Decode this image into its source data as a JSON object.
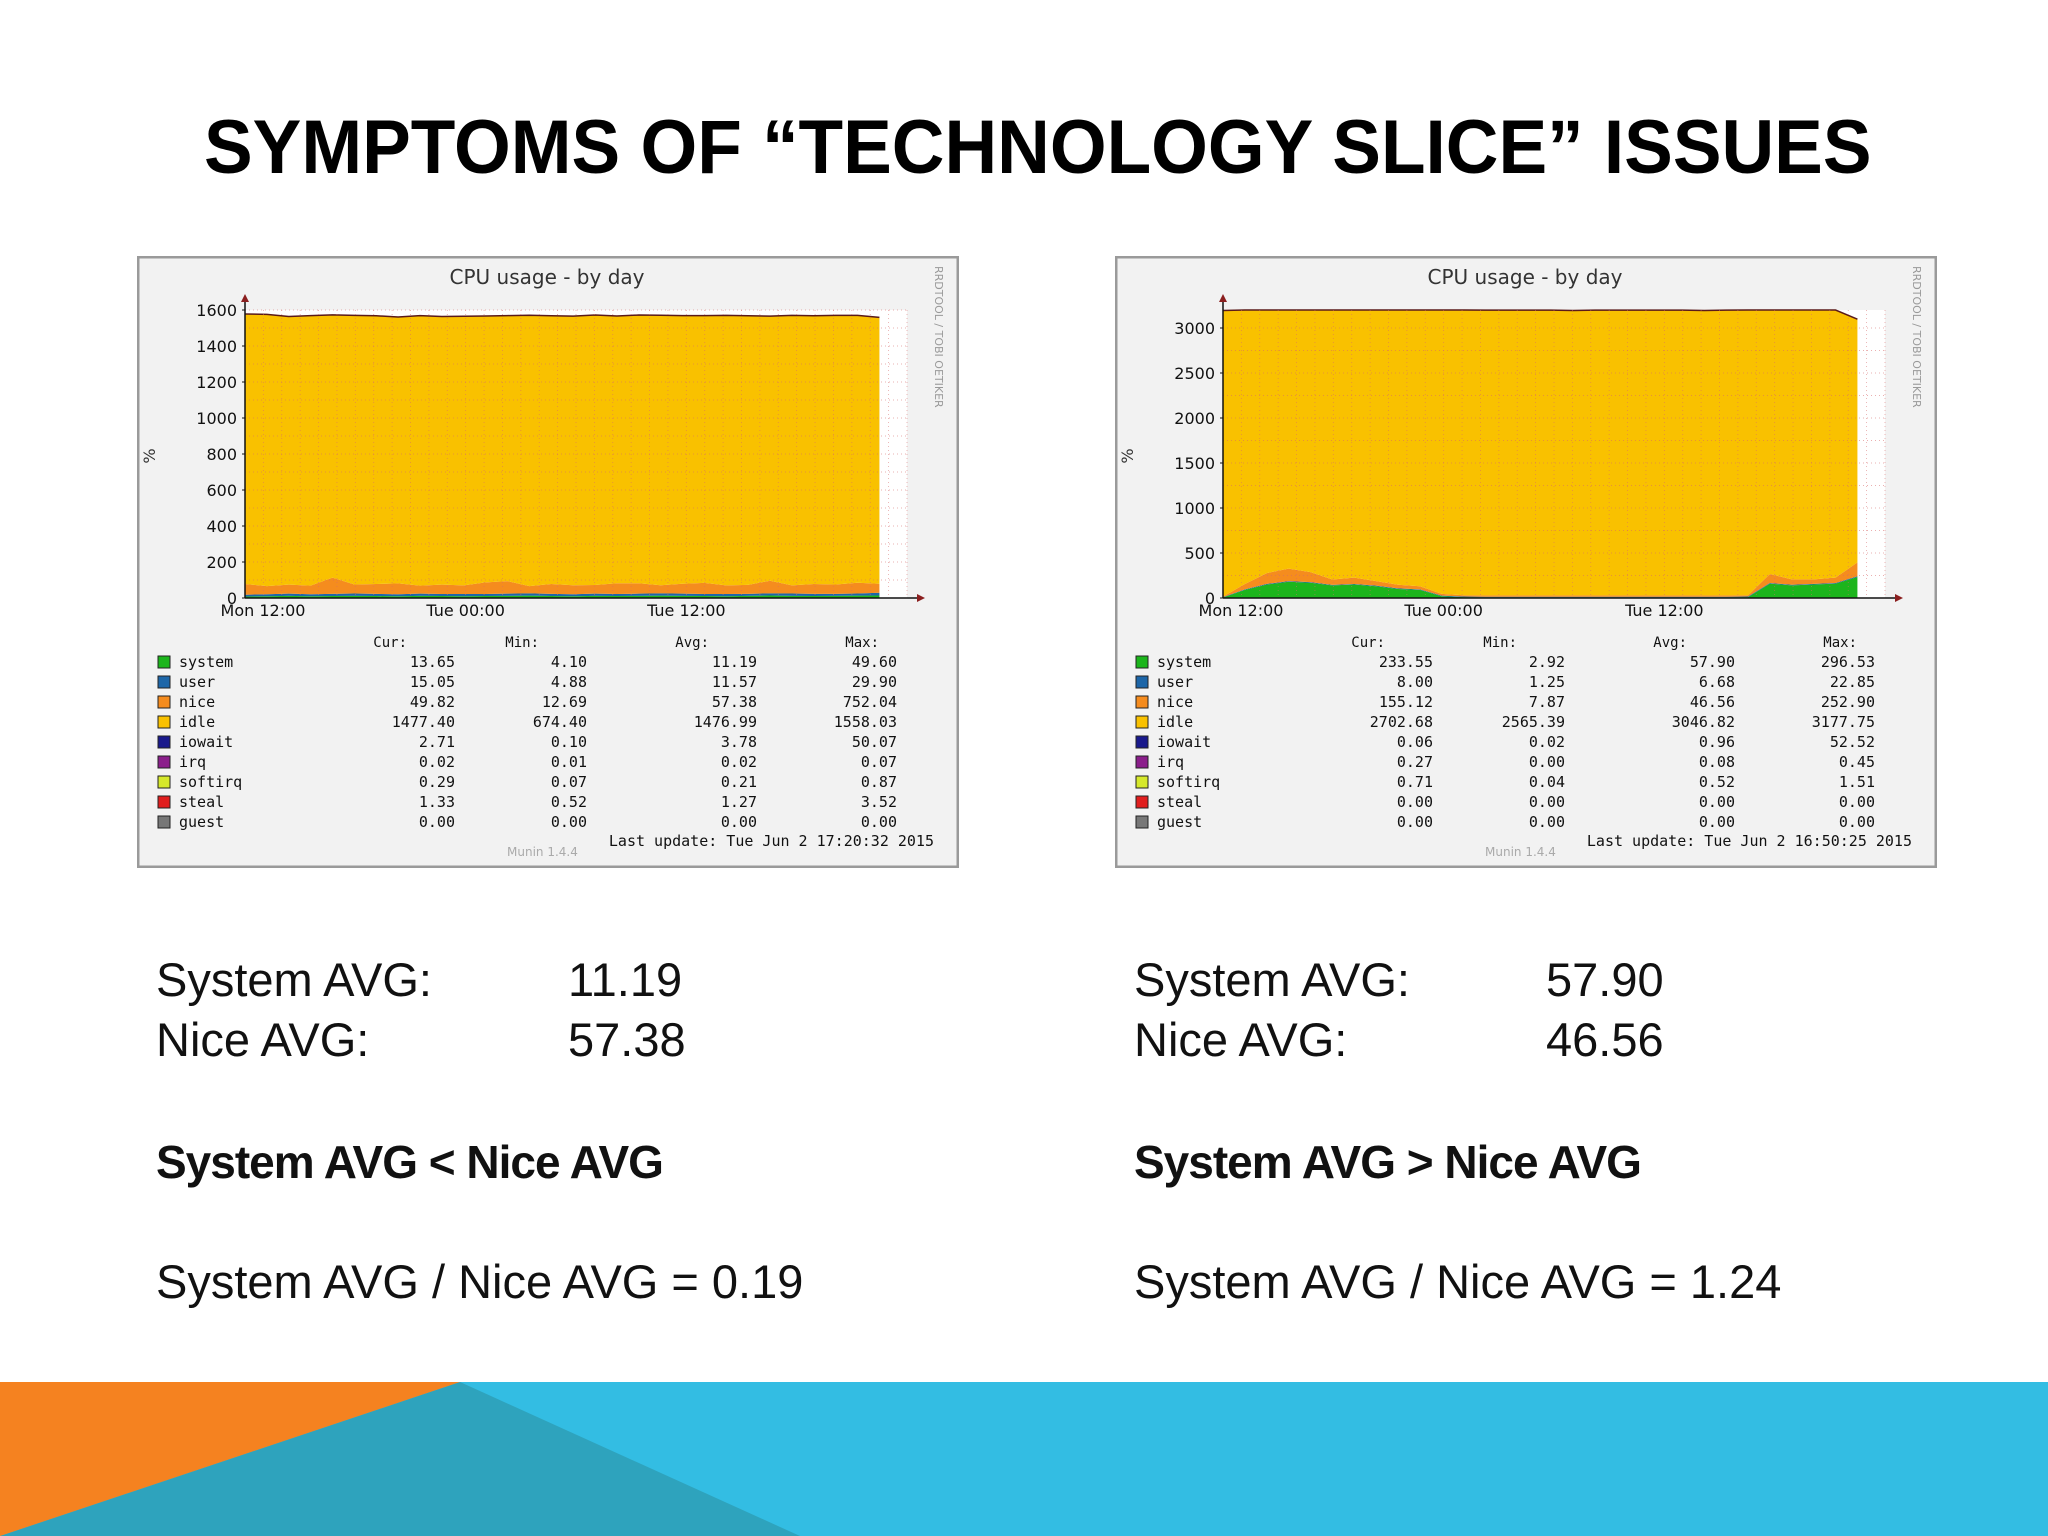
{
  "slide": {
    "title": "SYMPTOMS OF “TECHNOLOGY SLICE” ISSUES"
  },
  "colors": {
    "accent_orange": "#F58220",
    "accent_blue": "#33BDE3",
    "accent_teal": "#2EA3BD",
    "idle": "#F9C100",
    "nice": "#F58C1E",
    "system": "#1CB51C",
    "user": "#1D66A8"
  },
  "chart_data": [
    {
      "type": "area",
      "title": "CPU usage - by day",
      "ylabel": "%",
      "side_label": "RRDTOOL / TOBI OETIKER",
      "ylim": [
        0,
        1600
      ],
      "yticks": [
        "0",
        "200",
        "400",
        "600",
        "800",
        "1000",
        "1200",
        "1400",
        "1600"
      ],
      "ytick_values": [
        0,
        200,
        400,
        600,
        800,
        1000,
        1200,
        1400,
        1600
      ],
      "xlim": [
        0,
        36
      ],
      "xticks": [
        "Mon 12:00",
        "Tue 00:00",
        "Tue 12:00"
      ],
      "xtick_values": [
        0,
        12,
        24
      ],
      "grid": true,
      "series": [
        {
          "name": "system",
          "color": "#1CB51C",
          "values": [
            8,
            10,
            12,
            10,
            11,
            12,
            11,
            10,
            12,
            11,
            10,
            11,
            12,
            13,
            11,
            10,
            12,
            11,
            12,
            13,
            12,
            11,
            10,
            12,
            14,
            12,
            11,
            12,
            13,
            14
          ]
        },
        {
          "name": "user",
          "color": "#1D66A8",
          "values": [
            10,
            11,
            12,
            11,
            12,
            13,
            12,
            11,
            12,
            11,
            12,
            11,
            12,
            13,
            12,
            11,
            12,
            11,
            12,
            13,
            12,
            11,
            12,
            11,
            12,
            13,
            12,
            11,
            12,
            15
          ]
        },
        {
          "name": "nice",
          "color": "#F58C1E",
          "values": [
            60,
            45,
            50,
            48,
            90,
            50,
            55,
            60,
            45,
            52,
            48,
            65,
            70,
            40,
            55,
            50,
            48,
            60,
            58,
            45,
            55,
            62,
            48,
            50,
            70,
            45,
            55,
            52,
            60,
            50
          ]
        },
        {
          "name": "idle",
          "color": "#F9C100",
          "values": [
            1500,
            1510,
            1490,
            1500,
            1460,
            1495,
            1490,
            1480,
            1500,
            1490,
            1495,
            1480,
            1475,
            1505,
            1490,
            1495,
            1500,
            1485,
            1490,
            1500,
            1490,
            1485,
            1500,
            1495,
            1470,
            1500,
            1490,
            1495,
            1485,
            1480
          ]
        }
      ],
      "legend": {
        "headers": [
          "Cur:",
          "Min:",
          "Avg:",
          "Max:"
        ],
        "rows": [
          {
            "name": "system",
            "color": "#1CB51C",
            "cur": "13.65",
            "min": "4.10",
            "avg": "11.19",
            "max": "49.60"
          },
          {
            "name": "user",
            "color": "#1D66A8",
            "cur": "15.05",
            "min": "4.88",
            "avg": "11.57",
            "max": "29.90"
          },
          {
            "name": "nice",
            "color": "#F58C1E",
            "cur": "49.82",
            "min": "12.69",
            "avg": "57.38",
            "max": "752.04"
          },
          {
            "name": "idle",
            "color": "#F9C100",
            "cur": "1477.40",
            "min": "674.40",
            "avg": "1476.99",
            "max": "1558.03"
          },
          {
            "name": "iowait",
            "color": "#1A1A8C",
            "cur": "2.71",
            "min": "0.10",
            "avg": "3.78",
            "max": "50.07"
          },
          {
            "name": "irq",
            "color": "#8B1F8B",
            "cur": "0.02",
            "min": "0.01",
            "avg": "0.02",
            "max": "0.07"
          },
          {
            "name": "softirq",
            "color": "#D6E82B",
            "cur": "0.29",
            "min": "0.07",
            "avg": "0.21",
            "max": "0.87"
          },
          {
            "name": "steal",
            "color": "#E01E1E",
            "cur": "1.33",
            "min": "0.52",
            "avg": "1.27",
            "max": "3.52"
          },
          {
            "name": "guest",
            "color": "#777777",
            "cur": "0.00",
            "min": "0.00",
            "avg": "0.00",
            "max": "0.00"
          }
        ]
      },
      "last_update": "Last update:  Tue Jun   2 17:20:32 2015",
      "footer_label": "Munin 1.4.4"
    },
    {
      "type": "area",
      "title": "CPU usage - by day",
      "ylabel": "%",
      "side_label": "RRDTOOL / TOBI OETIKER",
      "ylim": [
        0,
        3200
      ],
      "yticks": [
        "0",
        "500",
        "1000",
        "1500",
        "2000",
        "2500",
        "3000"
      ],
      "ytick_values": [
        0,
        500,
        1000,
        1500,
        2000,
        2500,
        3000
      ],
      "xlim": [
        0,
        36
      ],
      "xticks": [
        "Mon 12:00",
        "Tue 00:00",
        "Tue 12:00"
      ],
      "xtick_values": [
        0,
        12,
        24
      ],
      "grid": true,
      "series": [
        {
          "name": "system",
          "color": "#1CB51C",
          "values": [
            5,
            90,
            150,
            180,
            170,
            140,
            150,
            130,
            100,
            90,
            20,
            10,
            8,
            8,
            8,
            8,
            8,
            8,
            8,
            8,
            8,
            8,
            8,
            8,
            10,
            160,
            140,
            150,
            160,
            233
          ]
        },
        {
          "name": "user",
          "color": "#1D66A8",
          "values": [
            5,
            6,
            7,
            7,
            7,
            6,
            6,
            7,
            7,
            6,
            6,
            6,
            6,
            6,
            6,
            6,
            6,
            6,
            6,
            6,
            6,
            6,
            6,
            6,
            6,
            7,
            7,
            7,
            7,
            8
          ]
        },
        {
          "name": "nice",
          "color": "#F58C1E",
          "values": [
            5,
            60,
            120,
            140,
            110,
            60,
            70,
            50,
            40,
            35,
            20,
            15,
            15,
            15,
            15,
            15,
            15,
            15,
            15,
            15,
            15,
            15,
            15,
            15,
            15,
            100,
            60,
            50,
            60,
            155
          ]
        },
        {
          "name": "idle",
          "color": "#F9C100",
          "values": [
            3180,
            3070,
            2980,
            2940,
            2960,
            3030,
            3010,
            3050,
            3090,
            3100,
            3160,
            3170,
            3170,
            3170,
            3170,
            3170,
            3165,
            3170,
            3170,
            3170,
            3170,
            3170,
            3165,
            3170,
            3170,
            2960,
            3030,
            3030,
            3000,
            2702
          ]
        }
      ],
      "legend": {
        "headers": [
          "Cur:",
          "Min:",
          "Avg:",
          "Max:"
        ],
        "rows": [
          {
            "name": "system",
            "color": "#1CB51C",
            "cur": "233.55",
            "min": "2.92",
            "avg": "57.90",
            "max": "296.53"
          },
          {
            "name": "user",
            "color": "#1D66A8",
            "cur": "8.00",
            "min": "1.25",
            "avg": "6.68",
            "max": "22.85"
          },
          {
            "name": "nice",
            "color": "#F58C1E",
            "cur": "155.12",
            "min": "7.87",
            "avg": "46.56",
            "max": "252.90"
          },
          {
            "name": "idle",
            "color": "#F9C100",
            "cur": "2702.68",
            "min": "2565.39",
            "avg": "3046.82",
            "max": "3177.75"
          },
          {
            "name": "iowait",
            "color": "#1A1A8C",
            "cur": "0.06",
            "min": "0.02",
            "avg": "0.96",
            "max": "52.52"
          },
          {
            "name": "irq",
            "color": "#8B1F8B",
            "cur": "0.27",
            "min": "0.00",
            "avg": "0.08",
            "max": "0.45"
          },
          {
            "name": "softirq",
            "color": "#D6E82B",
            "cur": "0.71",
            "min": "0.04",
            "avg": "0.52",
            "max": "1.51"
          },
          {
            "name": "steal",
            "color": "#E01E1E",
            "cur": "0.00",
            "min": "0.00",
            "avg": "0.00",
            "max": "0.00"
          },
          {
            "name": "guest",
            "color": "#777777",
            "cur": "0.00",
            "min": "0.00",
            "avg": "0.00",
            "max": "0.00"
          }
        ]
      },
      "last_update": "Last update:  Tue Jun   2 16:50:25 2015",
      "footer_label": "Munin 1.4.4"
    }
  ],
  "left": {
    "system_label": "System AVG:",
    "system_value": "11.19",
    "nice_label": "Nice AVG:",
    "nice_value": "57.38",
    "comparison": "System AVG < Nice AVG",
    "ratio": "System AVG / Nice AVG = 0.19"
  },
  "right": {
    "system_label": "System AVG:",
    "system_value": "57.90",
    "nice_label": "Nice AVG:",
    "nice_value": "46.56",
    "comparison": "System AVG > Nice AVG",
    "ratio": "System AVG / Nice AVG = 1.24"
  }
}
